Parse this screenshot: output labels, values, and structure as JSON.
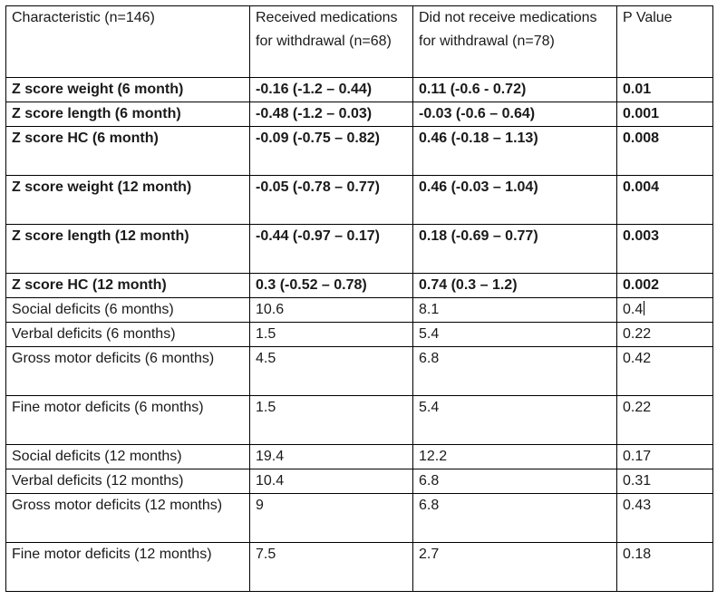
{
  "headers": [
    "Characteristic (n=146)",
    "Received medications for withdrawal (n=68)",
    "Did not receive medications for withdrawal (n=78)",
    "P Value"
  ],
  "rows": [
    {
      "bold": true,
      "cells": [
        "Z score weight (6 month)",
        "-0.16 (-1.2 – 0.44)",
        "0.11 (-0.6 - 0.72)",
        "0.01"
      ]
    },
    {
      "bold": true,
      "cells": [
        "Z score length (6 month)",
        "-0.48 (-1.2 – 0.03)",
        "-0.03 (-0.6 – 0.64)",
        "0.001"
      ]
    },
    {
      "bold": true,
      "cells": [
        "Z score HC (6 month)",
        "-0.09 (-0.75 – 0.82)",
        "0.46 (-0.18 – 1.13)",
        "0.008"
      ]
    },
    {
      "bold": true,
      "cells": [
        "Z score weight (12 month)",
        "-0.05 (-0.78 – 0.77)",
        "0.46 (-0.03 – 1.04)",
        "0.004"
      ]
    },
    {
      "bold": true,
      "cells": [
        "Z score length (12 month)",
        "-0.44 (-0.97 – 0.17)",
        "0.18 (-0.69 – 0.77)",
        "0.003"
      ]
    },
    {
      "bold": true,
      "cells": [
        "Z score HC (12 month)",
        "0.3 (-0.52 – 0.78)",
        "0.74 (0.3 – 1.2)",
        "0.002"
      ]
    },
    {
      "bold": false,
      "cells": [
        "Social deficits (6 months)",
        "10.6",
        "8.1",
        "0.4"
      ]
    },
    {
      "bold": false,
      "cells": [
        "Verbal deficits (6 months)",
        "1.5",
        "5.4",
        "0.22"
      ]
    },
    {
      "bold": false,
      "cells": [
        "Gross motor deficits (6 months)",
        "4.5",
        "6.8",
        "0.42"
      ]
    },
    {
      "bold": false,
      "cells": [
        "Fine motor deficits (6 months)",
        "1.5",
        "5.4",
        "0.22"
      ]
    },
    {
      "bold": false,
      "cells": [
        "Social deficits (12 months)",
        "19.4",
        "12.2",
        "0.17"
      ]
    },
    {
      "bold": false,
      "cells": [
        "Verbal deficits (12 months)",
        "10.4",
        "6.8",
        "0.31"
      ]
    },
    {
      "bold": false,
      "cells": [
        "Gross motor deficits (12 months)",
        "9",
        "6.8",
        "0.43"
      ]
    },
    {
      "bold": false,
      "cells": [
        "Fine motor deficits (12 months)",
        "7.5",
        "2.7",
        "0.18"
      ]
    }
  ]
}
